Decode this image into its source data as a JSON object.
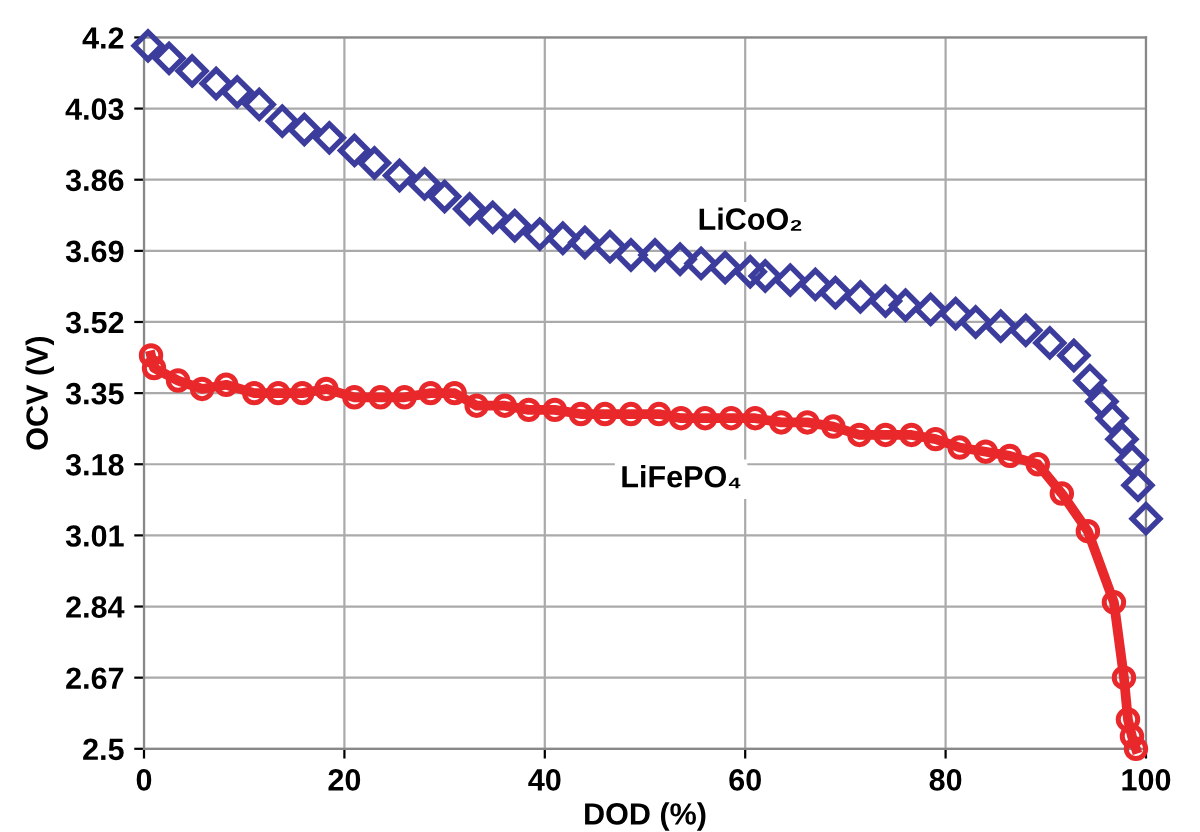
{
  "chart_data": {
    "type": "line",
    "xlabel": "DOD (%)",
    "ylabel": "OCV (V)",
    "xlim": [
      0,
      100
    ],
    "xticks": [
      0,
      20,
      40,
      60,
      80,
      100
    ],
    "ylim": [
      2.5,
      4.2
    ],
    "yticks": [
      2.5,
      2.67,
      2.84,
      3.01,
      3.18,
      3.35,
      3.52,
      3.69,
      3.86,
      4.03,
      4.2
    ],
    "grid": true,
    "series": [
      {
        "type": "scatter",
        "name": "LiCoO₂",
        "marker": "diamond",
        "color": "#3c3c9c",
        "x": [
          0.4,
          2.5,
          4.8,
          7.2,
          9.3,
          11.5,
          13.8,
          16,
          18.5,
          21,
          23,
          25.5,
          28,
          30,
          32.5,
          34.8,
          37,
          39.5,
          41.8,
          44,
          46.5,
          48.6,
          51,
          53.5,
          55.6,
          58,
          60.5,
          62,
          64.5,
          67,
          69,
          71.5,
          74,
          76,
          78.5,
          81,
          83,
          85.5,
          88,
          90.4,
          92.8,
          94.4,
          95.6,
          96.6,
          97.6,
          98.6,
          99.2,
          100
        ],
        "values": [
          4.18,
          4.15,
          4.12,
          4.09,
          4.07,
          4.04,
          4.0,
          3.98,
          3.96,
          3.93,
          3.9,
          3.87,
          3.85,
          3.82,
          3.79,
          3.77,
          3.75,
          3.73,
          3.72,
          3.71,
          3.7,
          3.68,
          3.68,
          3.67,
          3.66,
          3.65,
          3.64,
          3.63,
          3.62,
          3.61,
          3.59,
          3.58,
          3.57,
          3.56,
          3.55,
          3.54,
          3.52,
          3.51,
          3.5,
          3.47,
          3.44,
          3.38,
          3.33,
          3.29,
          3.24,
          3.19,
          3.13,
          3.05
        ]
      },
      {
        "name": "LiFePO₄",
        "marker": "circle",
        "line_style": "solid",
        "color": "#e8282a",
        "x": [
          0.7,
          1.0,
          3.4,
          5.8,
          8.2,
          11,
          13.4,
          15.8,
          18.2,
          21,
          23.6,
          26,
          28.6,
          31,
          33.2,
          36,
          38.4,
          41,
          43.6,
          46,
          48.6,
          51.4,
          53.6,
          56,
          58.6,
          61,
          63.6,
          66.2,
          68.8,
          71.4,
          74,
          76.6,
          79,
          81.4,
          84,
          86.4,
          89.2,
          91.6,
          94.2,
          96.8,
          97.8,
          98.2,
          98.6,
          99
        ],
        "values": [
          3.44,
          3.41,
          3.38,
          3.36,
          3.37,
          3.35,
          3.35,
          3.35,
          3.36,
          3.34,
          3.34,
          3.34,
          3.35,
          3.35,
          3.32,
          3.32,
          3.31,
          3.31,
          3.3,
          3.3,
          3.3,
          3.3,
          3.29,
          3.29,
          3.29,
          3.29,
          3.28,
          3.28,
          3.27,
          3.25,
          3.25,
          3.25,
          3.24,
          3.22,
          3.21,
          3.2,
          3.18,
          3.11,
          3.02,
          2.85,
          2.67,
          2.57,
          2.53,
          2.5
        ]
      }
    ]
  }
}
